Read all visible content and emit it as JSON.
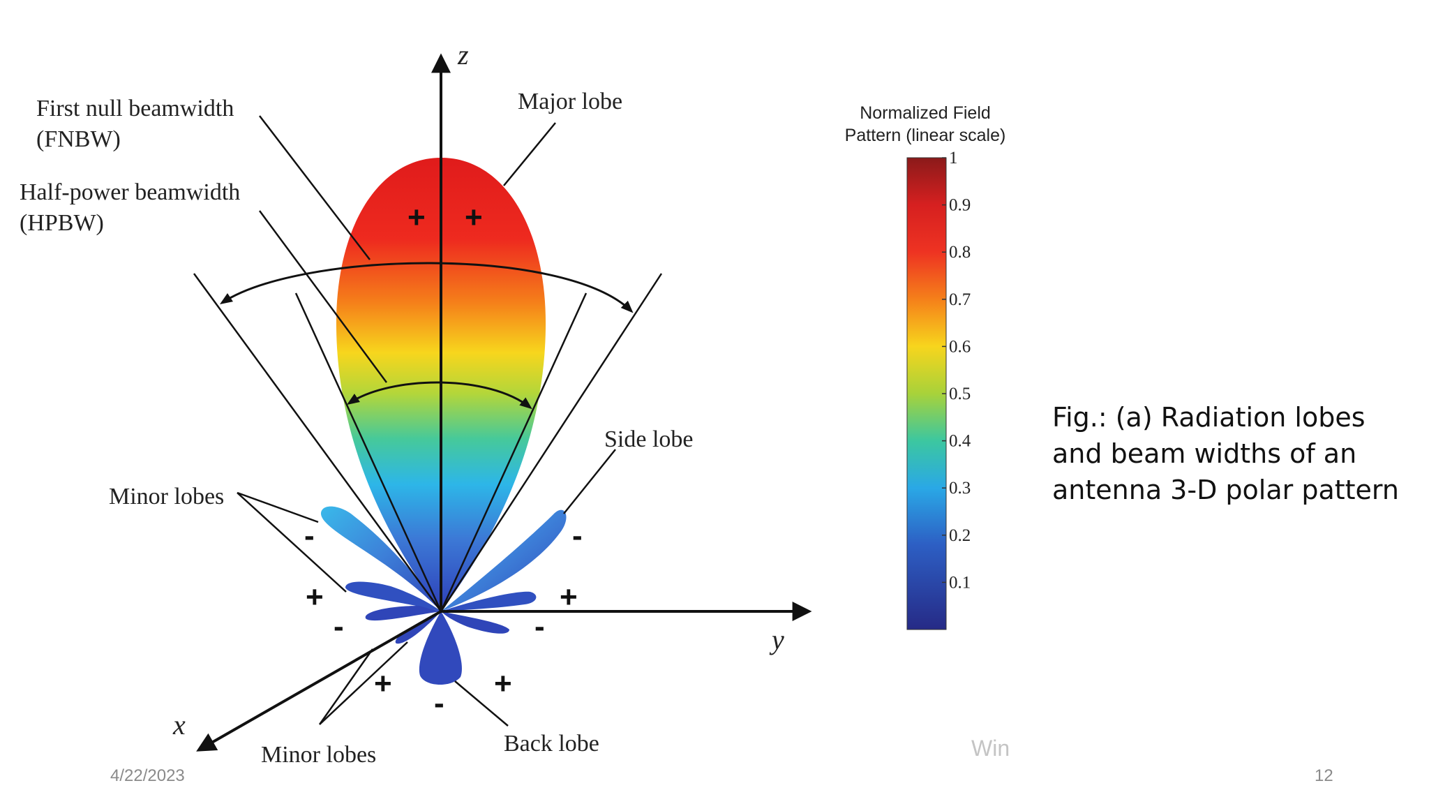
{
  "figure": {
    "labels": {
      "fnbw_line1": "First null beamwidth",
      "fnbw_line2": "(FNBW)",
      "hpbw_line1": "Half-power beamwidth",
      "hpbw_line2": "(HPBW)",
      "major_lobe": "Major lobe",
      "side_lobe": "Side lobe",
      "minor_lobes_left": "Minor lobes",
      "minor_lobes_bottom": "Minor lobes",
      "back_lobe": "Back lobe"
    },
    "axes": {
      "z": "z",
      "y": "y",
      "x": "x"
    },
    "signs": {
      "major_left": "+",
      "major_right": "+",
      "left_upper_minor": "-",
      "left_middle_minor": "+",
      "left_lower_minor": "-",
      "right_side_lobe": "-",
      "right_middle_minor": "+",
      "right_lower_minor": "-",
      "front_minor": "+",
      "back_lobe": "-",
      "right_back": "+"
    }
  },
  "colorbar": {
    "title_line1": "Normalized Field",
    "title_line2": "Pattern (linear scale)",
    "ticks": [
      "1",
      "0.9",
      "0.8",
      "0.7",
      "0.6",
      "0.5",
      "0.4",
      "0.3",
      "0.2",
      "0.1"
    ],
    "colors": [
      "#8b1a1a",
      "#d62020",
      "#ee3322",
      "#f5801a",
      "#f7d51d",
      "#a8d23a",
      "#3cc7a0",
      "#2aa8e6",
      "#2d5fc4",
      "#2a2f8f"
    ]
  },
  "caption": "Fig.: (a) Radiation lobes and beam widths of an antenna 3-D polar pattern",
  "footer": {
    "date": "4/22/2023",
    "page_number": "12",
    "watermark": "Win"
  }
}
